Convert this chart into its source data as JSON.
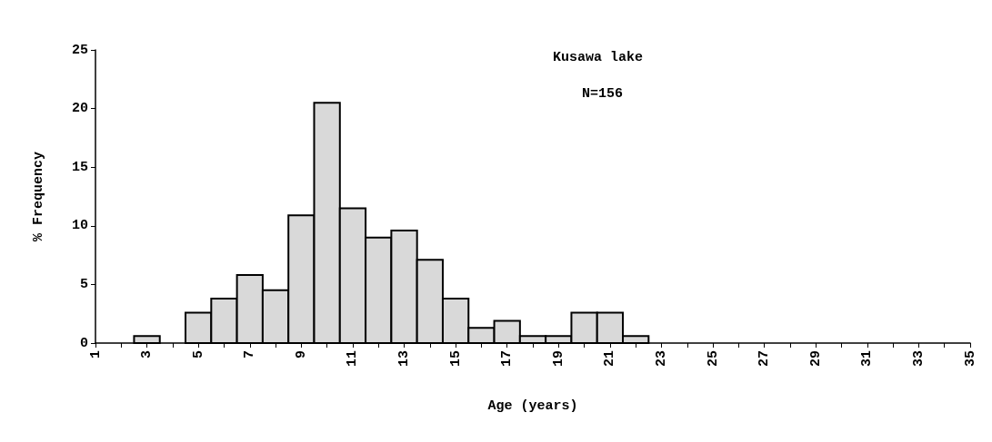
{
  "chart_data": {
    "type": "histogram",
    "xlabel": "Age (years)",
    "ylabel": "% Frequency",
    "bins": [
      2.5,
      3.5,
      4.5,
      5.5,
      6.5,
      7.5,
      8.5,
      9.5,
      10.5,
      11.5,
      12.5,
      13.5,
      14.5,
      15.5,
      16.5,
      17.5,
      18.5,
      19.5,
      20.5,
      21.5,
      22.5
    ],
    "values": [
      0.6,
      0,
      2.6,
      3.8,
      5.8,
      4.5,
      10.9,
      20.5,
      11.5,
      9,
      9.6,
      7.1,
      3.8,
      1.3,
      1.9,
      0.6,
      0.6,
      2.6,
      2.6,
      0.6
    ],
    "color": "#d9d9d9",
    "xlim": [
      1,
      35
    ],
    "xticks": [
      1,
      {
        "value": 2,
        "label": null
      },
      3,
      {
        "value": 4,
        "label": null
      },
      5,
      {
        "value": 6,
        "label": null
      },
      7,
      {
        "value": 8,
        "label": null
      },
      9,
      {
        "value": 10,
        "label": null
      },
      11,
      {
        "value": 12,
        "label": null
      },
      13,
      {
        "value": 14,
        "label": null
      },
      15,
      {
        "value": 16,
        "label": null
      },
      17,
      {
        "value": 18,
        "label": null
      },
      19,
      {
        "value": 20,
        "label": null
      },
      21,
      {
        "value": 22,
        "label": null
      },
      23,
      {
        "value": 24,
        "label": null
      },
      25,
      {
        "value": 26,
        "label": null
      },
      27,
      {
        "value": 28,
        "label": null
      },
      29,
      {
        "value": 30,
        "label": null
      },
      31,
      {
        "value": 32,
        "label": null
      },
      33,
      {
        "value": 34,
        "label": null
      },
      35
    ],
    "ylim": [
      0,
      25
    ],
    "yticks": [
      0,
      5,
      10,
      15,
      20,
      25
    ],
    "annotations": [
      "Kusawa lake",
      "N=156"
    ],
    "grid": false
  }
}
